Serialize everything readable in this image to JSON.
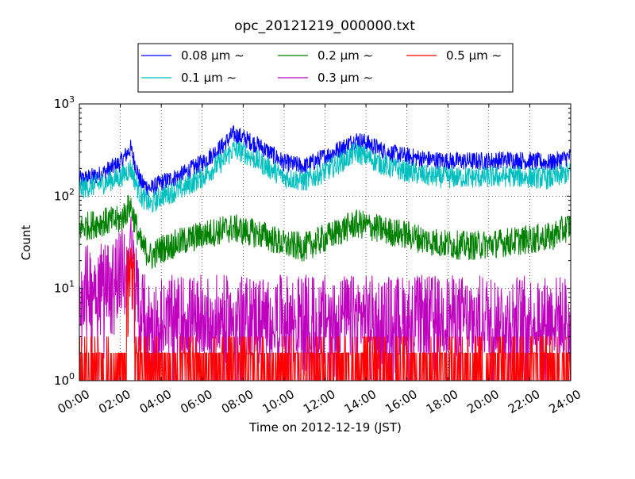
{
  "chart_data": {
    "type": "line",
    "title": "opc_20121219_000000.txt",
    "xlabel": "Time on 2012-12-19 (JST)",
    "ylabel": "Count",
    "y_scale": "log",
    "ylim": [
      1,
      1000
    ],
    "xlim": [
      "00:00",
      "24:00"
    ],
    "x_ticks": [
      "00:00",
      "02:00",
      "04:00",
      "06:00",
      "08:00",
      "10:00",
      "12:00",
      "14:00",
      "16:00",
      "18:00",
      "20:00",
      "22:00",
      "24:00"
    ],
    "y_ticks": [
      {
        "value": 1,
        "base": "10",
        "exp": "0"
      },
      {
        "value": 10,
        "base": "10",
        "exp": "1"
      },
      {
        "value": 100,
        "base": "10",
        "exp": "2"
      },
      {
        "value": 1000,
        "base": "10",
        "exp": "3"
      }
    ],
    "grid": true,
    "legend_position": "top-center",
    "legend_unit": "μm ∼",
    "series": [
      {
        "name": "0.08",
        "color": "#0000ff",
        "x": [
          "00:00",
          "01:00",
          "02:00",
          "02:30",
          "03:00",
          "03:30",
          "04:00",
          "05:00",
          "06:00",
          "07:00",
          "07:30",
          "08:00",
          "09:00",
          "10:00",
          "11:00",
          "12:00",
          "13:00",
          "13:30",
          "14:00",
          "15:00",
          "16:00",
          "17:00",
          "18:00",
          "19:00",
          "20:00",
          "21:00",
          "22:00",
          "23:00",
          "24:00"
        ],
        "y": [
          150,
          170,
          230,
          330,
          140,
          120,
          140,
          170,
          230,
          350,
          470,
          430,
          330,
          230,
          210,
          270,
          350,
          410,
          380,
          300,
          270,
          250,
          240,
          240,
          240,
          250,
          240,
          230,
          270
        ]
      },
      {
        "name": "0.1",
        "color": "#00bfbf",
        "x": [
          "00:00",
          "01:00",
          "02:00",
          "02:30",
          "03:00",
          "03:30",
          "04:00",
          "05:00",
          "06:00",
          "07:00",
          "07:30",
          "08:00",
          "09:00",
          "10:00",
          "11:00",
          "12:00",
          "13:00",
          "13:30",
          "14:00",
          "15:00",
          "16:00",
          "17:00",
          "18:00",
          "19:00",
          "20:00",
          "21:00",
          "22:00",
          "23:00",
          "24:00"
        ],
        "y": [
          120,
          135,
          160,
          200,
          100,
          80,
          100,
          120,
          160,
          240,
          320,
          300,
          220,
          160,
          145,
          185,
          250,
          300,
          270,
          210,
          185,
          165,
          160,
          160,
          160,
          165,
          160,
          155,
          180
        ]
      },
      {
        "name": "0.2",
        "color": "#008000",
        "x": [
          "00:00",
          "01:00",
          "02:00",
          "02:30",
          "03:00",
          "03:30",
          "04:00",
          "05:00",
          "06:00",
          "07:00",
          "07:30",
          "08:00",
          "09:00",
          "10:00",
          "11:00",
          "12:00",
          "13:00",
          "13:30",
          "14:00",
          "15:00",
          "16:00",
          "17:00",
          "18:00",
          "19:00",
          "20:00",
          "21:00",
          "22:00",
          "23:00",
          "24:00"
        ],
        "y": [
          45,
          52,
          55,
          80,
          30,
          22,
          27,
          32,
          38,
          43,
          45,
          42,
          38,
          30,
          28,
          35,
          45,
          50,
          48,
          42,
          38,
          33,
          30,
          29,
          30,
          32,
          34,
          36,
          48
        ]
      },
      {
        "name": "0.3",
        "color": "#bf00bf",
        "x": [
          "00:00",
          "01:00",
          "02:00",
          "02:30",
          "03:00",
          "03:30",
          "04:00",
          "05:00",
          "06:00",
          "07:00",
          "07:30",
          "08:00",
          "09:00",
          "10:00",
          "11:00",
          "12:00",
          "13:00",
          "13:30",
          "14:00",
          "15:00",
          "16:00",
          "17:00",
          "18:00",
          "19:00",
          "20:00",
          "21:00",
          "22:00",
          "23:00",
          "24:00"
        ],
        "y": [
          10,
          12,
          15,
          25,
          6,
          4,
          5,
          5,
          5,
          5,
          5,
          5,
          5,
          5,
          5,
          5,
          5,
          5,
          5,
          5,
          5,
          5,
          5,
          5,
          5,
          5,
          5,
          5,
          5
        ]
      },
      {
        "name": "0.5",
        "color": "#ff0000",
        "x": [
          "00:00",
          "01:00",
          "02:00",
          "02:30",
          "03:00",
          "03:30",
          "04:00",
          "05:00",
          "06:00",
          "07:00",
          "07:30",
          "08:00",
          "09:00",
          "10:00",
          "11:00",
          "12:00",
          "13:00",
          "13:30",
          "14:00",
          "15:00",
          "16:00",
          "17:00",
          "18:00",
          "19:00",
          "20:00",
          "21:00",
          "22:00",
          "23:00",
          "24:00"
        ],
        "y": [
          1,
          1,
          1.5,
          10,
          1.3,
          1.2,
          1.3,
          1.3,
          1.3,
          1.2,
          1.2,
          1.3,
          1.2,
          1.2,
          1.3,
          1.5,
          1.5,
          1.3,
          1.3,
          1.2,
          1.2,
          1.2,
          1.2,
          1.2,
          1.2,
          1.2,
          1.2,
          1.2,
          1.2
        ]
      }
    ]
  }
}
